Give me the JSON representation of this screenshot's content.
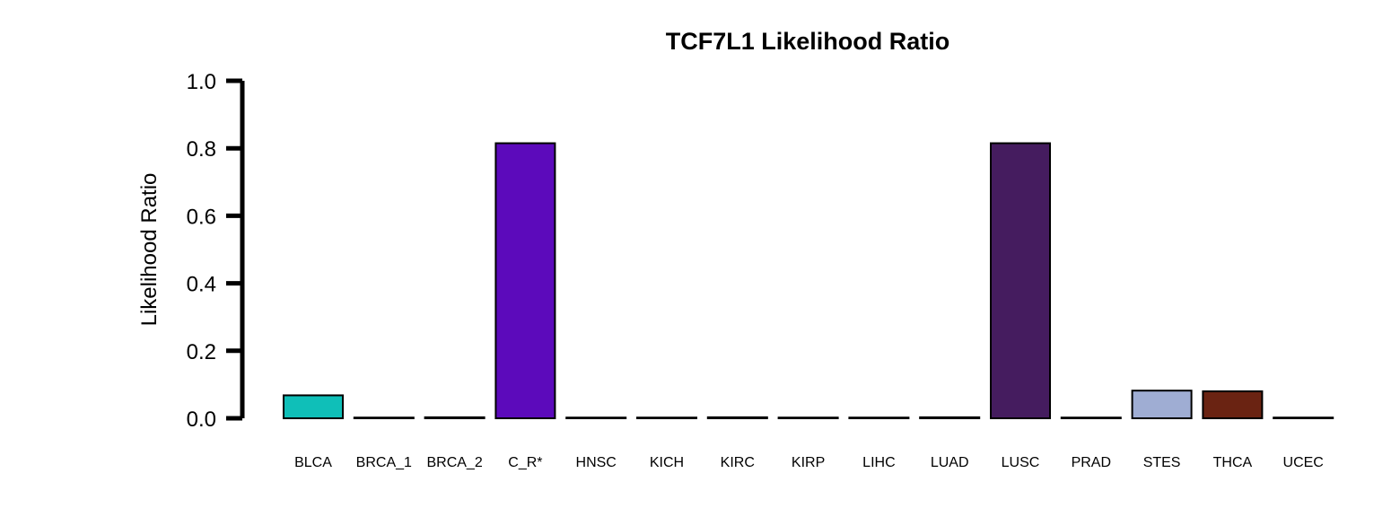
{
  "chart_data": {
    "type": "bar",
    "title": "TCF7L1 Likelihood Ratio",
    "xlabel": "",
    "ylabel": "Likelihood Ratio",
    "ylim": [
      0,
      1.0
    ],
    "yticks": [
      "0.0",
      "0.2",
      "0.4",
      "0.6",
      "0.8",
      "1.0"
    ],
    "categories": [
      "BLCA",
      "BRCA_1",
      "BRCA_2",
      "C_R*",
      "HNSC",
      "KICH",
      "KIRC",
      "KIRP",
      "LIHC",
      "LUAD",
      "LUSC",
      "PRAD",
      "STES",
      "THCA",
      "UCEC"
    ],
    "values": [
      0.068,
      0.001,
      0.003,
      0.815,
      0.001,
      0.001,
      0.003,
      0.001,
      0.001,
      0.003,
      0.815,
      0.001,
      0.082,
      0.08,
      0.001
    ],
    "colors": [
      "#0fbfb8",
      "#4a4a4a",
      "#1a1a1a",
      "#5c0abb",
      "#333333",
      "#333333",
      "#1a1a1a",
      "#333333",
      "#333333",
      "#1a1a1a",
      "#451c5f",
      "#333333",
      "#9fadd3",
      "#6a2312",
      "#333333"
    ],
    "grid": false,
    "legend": "none"
  }
}
